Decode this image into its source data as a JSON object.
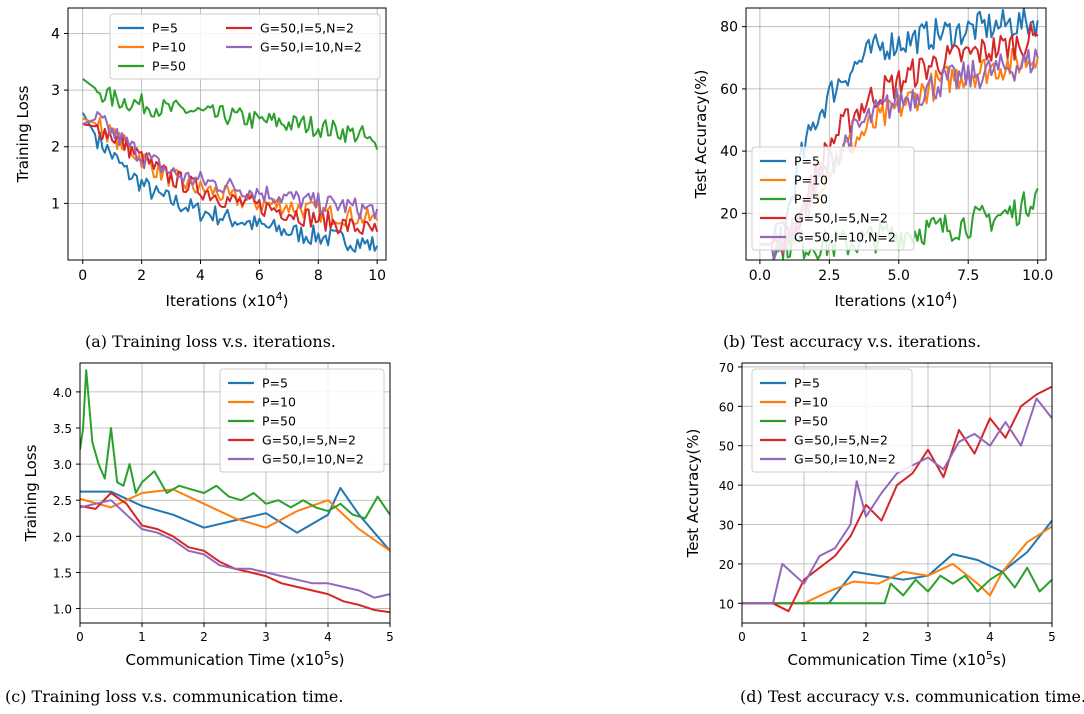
{
  "colors": {
    "P=5": "#1f77b4",
    "P=10": "#ff7f0e",
    "P=50": "#2ca02c",
    "G=50,I=5,N=2": "#d62728",
    "G=50,I=10,N=2": "#9467bd"
  },
  "captions": [
    "(a) Training loss v.s. iterations.",
    "(b) Test accuracy v.s. iterations.",
    "(c) Training loss v.s. communication time.",
    "(d) Test accuracy v.s. communication time."
  ],
  "chart_data": [
    {
      "type": "line",
      "xlabel": "Iterations (x10^4)",
      "ylabel": "Training Loss",
      "xlim": [
        -0.5,
        10.3
      ],
      "ylim": [
        0.0,
        4.45
      ],
      "xticks": [
        0,
        2,
        4,
        6,
        8,
        10
      ],
      "xtick_labels": [
        "0",
        "2",
        "4",
        "6",
        "8",
        "10"
      ],
      "yticks": [
        1,
        2,
        3,
        4
      ],
      "ytick_labels": [
        "1",
        "2",
        "3",
        "4"
      ],
      "grid": true,
      "legend": "top",
      "legend_columns": 2,
      "series": [
        {
          "name": "P=5",
          "x": [
            0,
            0.5,
            1,
            1.5,
            2,
            2.5,
            3,
            3.5,
            4,
            4.5,
            5,
            5.5,
            6,
            6.5,
            7,
            7.5,
            8,
            8.5,
            9,
            9.5,
            10
          ],
          "y": [
            2.6,
            2.15,
            1.85,
            1.55,
            1.35,
            1.15,
            1.05,
            0.95,
            0.85,
            0.8,
            0.72,
            0.68,
            0.6,
            0.55,
            0.5,
            0.45,
            0.42,
            0.38,
            0.35,
            0.3,
            0.25
          ]
        },
        {
          "name": "P=10",
          "x": [
            0,
            0.5,
            1,
            1.5,
            2,
            2.5,
            3,
            3.5,
            4,
            4.5,
            5,
            5.5,
            6,
            6.5,
            7,
            7.5,
            8,
            8.5,
            9,
            9.5,
            10
          ],
          "y": [
            2.5,
            2.4,
            2.2,
            2.0,
            1.8,
            1.6,
            1.45,
            1.35,
            1.25,
            1.2,
            1.1,
            1.05,
            1.0,
            0.98,
            0.95,
            0.9,
            0.85,
            0.8,
            0.78,
            0.75,
            0.7
          ]
        },
        {
          "name": "P=50",
          "x": [
            0,
            0.5,
            1,
            1.5,
            2,
            2.5,
            3,
            3.5,
            4,
            4.5,
            5,
            5.5,
            6,
            6.5,
            7,
            7.5,
            8,
            8.5,
            9,
            9.5,
            10
          ],
          "y": [
            3.2,
            3.0,
            2.85,
            2.8,
            2.75,
            2.7,
            2.65,
            2.65,
            2.6,
            2.55,
            2.55,
            2.5,
            2.45,
            2.45,
            2.4,
            2.4,
            2.35,
            2.3,
            2.25,
            2.2,
            1.95
          ]
        },
        {
          "name": "G=50,I=5,N=2",
          "x": [
            0,
            0.5,
            1,
            1.5,
            2,
            2.5,
            3,
            3.5,
            4,
            4.5,
            5,
            5.5,
            6,
            6.5,
            7,
            7.5,
            8,
            8.5,
            9,
            9.5,
            10
          ],
          "y": [
            2.4,
            2.35,
            2.2,
            2.0,
            1.8,
            1.6,
            1.45,
            1.35,
            1.25,
            1.15,
            1.05,
            1.0,
            0.95,
            0.9,
            0.85,
            0.78,
            0.72,
            0.66,
            0.6,
            0.55,
            0.5
          ]
        },
        {
          "name": "G=50,I=10,N=2",
          "x": [
            0,
            0.5,
            1,
            1.5,
            2,
            2.5,
            3,
            3.5,
            4,
            4.5,
            5,
            5.5,
            6,
            6.5,
            7,
            7.5,
            8,
            8.5,
            9,
            9.5,
            10
          ],
          "y": [
            2.4,
            2.5,
            2.25,
            2.05,
            1.85,
            1.7,
            1.55,
            1.45,
            1.4,
            1.35,
            1.3,
            1.25,
            1.2,
            1.15,
            1.1,
            1.05,
            1.0,
            0.98,
            0.95,
            0.9,
            0.9
          ]
        }
      ]
    },
    {
      "type": "line",
      "xlabel": "Iterations (x10^4)",
      "ylabel": "Test Accuracy(%)",
      "xlim": [
        -0.5,
        10.3
      ],
      "ylim": [
        5,
        86
      ],
      "xticks": [
        0,
        2.5,
        5,
        7.5,
        10
      ],
      "xtick_labels": [
        "0.0",
        "2.5",
        "5.0",
        "7.5",
        "10.0"
      ],
      "yticks": [
        20,
        40,
        60,
        80
      ],
      "ytick_labels": [
        "20",
        "40",
        "60",
        "80"
      ],
      "grid": true,
      "legend": "bottom-left",
      "legend_columns": 1,
      "series": [
        {
          "name": "P=5",
          "x": [
            0,
            0.5,
            1,
            1.5,
            2,
            2.5,
            3,
            3.5,
            4,
            4.5,
            5,
            5.5,
            6,
            6.5,
            7,
            7.5,
            8,
            8.5,
            9,
            9.5,
            10
          ],
          "y": [
            10,
            10,
            20,
            38,
            50,
            58,
            64,
            68,
            72,
            74,
            75,
            76,
            77,
            78,
            78,
            79,
            80,
            80,
            81,
            81,
            82
          ]
        },
        {
          "name": "P=10",
          "x": [
            0,
            0.5,
            1,
            1.5,
            2,
            2.5,
            3,
            3.5,
            4,
            4.5,
            5,
            5.5,
            6,
            6.5,
            7,
            7.5,
            8,
            8.5,
            9,
            9.5,
            10
          ],
          "y": [
            10,
            10,
            12,
            18,
            28,
            35,
            40,
            44,
            48,
            51,
            54,
            57,
            60,
            62,
            64,
            65,
            66,
            67,
            68,
            69,
            70
          ]
        },
        {
          "name": "P=50",
          "x": [
            0,
            0.5,
            1,
            1.5,
            2,
            2.5,
            3,
            3.5,
            4,
            4.5,
            5,
            5.5,
            6,
            6.5,
            7,
            7.5,
            8,
            8.5,
            9,
            9.5,
            10
          ],
          "y": [
            10,
            10,
            10,
            10,
            10,
            10,
            10,
            11,
            12,
            13,
            13,
            14,
            15,
            15,
            16,
            17,
            18,
            19,
            20,
            22,
            28
          ]
        },
        {
          "name": "G=50,I=5,N=2",
          "x": [
            0,
            0.5,
            1,
            1.5,
            2,
            2.5,
            3,
            3.5,
            4,
            4.5,
            5,
            5.5,
            6,
            6.5,
            7,
            7.5,
            8,
            8.5,
            9,
            9.5,
            10
          ],
          "y": [
            10,
            10,
            12,
            20,
            32,
            42,
            48,
            53,
            57,
            60,
            62,
            65,
            67,
            69,
            70,
            71,
            72,
            73,
            74,
            75,
            77
          ]
        },
        {
          "name": "G=50,I=10,N=2",
          "x": [
            0,
            0.5,
            1,
            1.5,
            2,
            2.5,
            3,
            3.5,
            4,
            4.5,
            5,
            5.5,
            6,
            6.5,
            7,
            7.5,
            8,
            8.5,
            9,
            9.5,
            10
          ],
          "y": [
            10,
            10,
            12,
            18,
            28,
            36,
            42,
            47,
            51,
            54,
            56,
            58,
            60,
            62,
            63,
            64,
            65,
            66,
            67,
            68,
            70
          ]
        }
      ]
    },
    {
      "type": "line",
      "xlabel": "Communication Time (x10^5s)",
      "ylabel": "Training Loss",
      "xlim": [
        0,
        5
      ],
      "ylim": [
        0.8,
        4.4
      ],
      "xticks": [
        0,
        1,
        2,
        3,
        4,
        5
      ],
      "xtick_labels": [
        "0",
        "1",
        "2",
        "3",
        "4",
        "5"
      ],
      "yticks": [
        1.0,
        1.5,
        2.0,
        2.5,
        3.0,
        3.5,
        4.0
      ],
      "ytick_labels": [
        "1.0",
        "1.5",
        "2.0",
        "2.5",
        "3.0",
        "3.5",
        "4.0"
      ],
      "grid": true,
      "legend": "top-right",
      "legend_columns": 1,
      "series": [
        {
          "name": "P=5",
          "x": [
            0,
            0.5,
            1,
            1.5,
            2,
            2.5,
            3,
            3.5,
            4,
            4.2,
            4.5,
            5
          ],
          "y": [
            2.62,
            2.62,
            2.42,
            2.3,
            2.12,
            2.22,
            2.32,
            2.05,
            2.3,
            2.67,
            2.3,
            1.8
          ]
        },
        {
          "name": "P=10",
          "x": [
            0,
            0.5,
            1,
            1.5,
            2,
            2.5,
            3,
            3.5,
            4,
            4.5,
            5
          ],
          "y": [
            2.52,
            2.4,
            2.6,
            2.65,
            2.45,
            2.25,
            2.12,
            2.35,
            2.5,
            2.1,
            1.8
          ]
        },
        {
          "name": "P=50",
          "x": [
            0,
            0.05,
            0.1,
            0.2,
            0.3,
            0.4,
            0.5,
            0.6,
            0.7,
            0.8,
            0.9,
            1.0,
            1.2,
            1.4,
            1.6,
            1.8,
            2.0,
            2.2,
            2.4,
            2.6,
            2.8,
            3.0,
            3.2,
            3.4,
            3.6,
            3.8,
            4.0,
            4.2,
            4.4,
            4.6,
            4.8,
            5.0
          ],
          "y": [
            3.2,
            3.5,
            4.3,
            3.3,
            3.0,
            2.8,
            3.5,
            2.75,
            2.7,
            3.0,
            2.6,
            2.75,
            2.9,
            2.6,
            2.7,
            2.65,
            2.6,
            2.7,
            2.55,
            2.5,
            2.6,
            2.45,
            2.5,
            2.4,
            2.5,
            2.4,
            2.35,
            2.45,
            2.3,
            2.25,
            2.55,
            2.3
          ]
        },
        {
          "name": "G=50,I=5,N=2",
          "x": [
            0,
            0.25,
            0.5,
            0.75,
            1,
            1.25,
            1.5,
            1.75,
            2,
            2.25,
            2.5,
            2.75,
            3,
            3.25,
            3.5,
            3.75,
            4,
            4.25,
            4.5,
            4.75,
            5
          ],
          "y": [
            2.42,
            2.38,
            2.6,
            2.45,
            2.15,
            2.1,
            2.0,
            1.85,
            1.8,
            1.65,
            1.55,
            1.5,
            1.45,
            1.35,
            1.3,
            1.25,
            1.2,
            1.1,
            1.05,
            0.98,
            0.95
          ]
        },
        {
          "name": "G=50,I=10,N=2",
          "x": [
            0,
            0.25,
            0.5,
            0.75,
            1,
            1.25,
            1.5,
            1.75,
            2,
            2.25,
            2.5,
            2.75,
            3,
            3.25,
            3.5,
            3.75,
            4,
            4.25,
            4.5,
            4.75,
            5
          ],
          "y": [
            2.4,
            2.45,
            2.5,
            2.3,
            2.1,
            2.05,
            1.95,
            1.8,
            1.75,
            1.6,
            1.55,
            1.55,
            1.5,
            1.45,
            1.4,
            1.35,
            1.35,
            1.3,
            1.25,
            1.15,
            1.2
          ]
        }
      ]
    },
    {
      "type": "line",
      "xlabel": "Communication Time (x10^5s)",
      "ylabel": "Test Accuracy(%)",
      "xlim": [
        0,
        5
      ],
      "ylim": [
        5,
        71
      ],
      "xticks": [
        0,
        1,
        2,
        3,
        4,
        5
      ],
      "xtick_labels": [
        "0",
        "1",
        "2",
        "3",
        "4",
        "5"
      ],
      "yticks": [
        10,
        20,
        30,
        40,
        50,
        60,
        70
      ],
      "ytick_labels": [
        "10",
        "20",
        "30",
        "40",
        "50",
        "60",
        "70"
      ],
      "grid": true,
      "legend": "top-left",
      "legend_columns": 1,
      "series": [
        {
          "name": "P=5",
          "x": [
            0,
            0.5,
            1,
            1.4,
            1.8,
            2.2,
            2.6,
            3.0,
            3.4,
            3.8,
            4.2,
            4.6,
            5.0
          ],
          "y": [
            10,
            10,
            10,
            10,
            18,
            17,
            16,
            17,
            22.5,
            21,
            18,
            23,
            31
          ]
        },
        {
          "name": "P=10",
          "x": [
            0,
            0.5,
            1,
            1.4,
            1.8,
            2.2,
            2.6,
            3.0,
            3.4,
            3.8,
            4.0,
            4.2,
            4.6,
            5.0
          ],
          "y": [
            10,
            10,
            10,
            13,
            15.5,
            15,
            18,
            17,
            20,
            15,
            12,
            18,
            25.5,
            29.5
          ]
        },
        {
          "name": "P=50",
          "x": [
            0,
            0.5,
            1,
            1.5,
            2,
            2.3,
            2.4,
            2.6,
            2.8,
            3.0,
            3.2,
            3.4,
            3.6,
            3.8,
            4.0,
            4.2,
            4.4,
            4.6,
            4.8,
            5.0
          ],
          "y": [
            10,
            10,
            10,
            10,
            10,
            10,
            15,
            12,
            16,
            13,
            17,
            15,
            17,
            13,
            16,
            18,
            14,
            19,
            13,
            16
          ]
        },
        {
          "name": "G=50,I=5,N=2",
          "x": [
            0,
            0.5,
            0.75,
            1,
            1.25,
            1.5,
            1.75,
            2,
            2.25,
            2.5,
            2.75,
            3,
            3.25,
            3.5,
            3.75,
            4,
            4.25,
            4.5,
            4.75,
            5
          ],
          "y": [
            10,
            10,
            8,
            16,
            19,
            22,
            27,
            35,
            31,
            40,
            43,
            49,
            42,
            54,
            48,
            57,
            52,
            60,
            63,
            65
          ]
        },
        {
          "name": "G=50,I=10,N=2",
          "x": [
            0,
            0.5,
            0.65,
            1,
            1.25,
            1.5,
            1.75,
            1.85,
            2,
            2.25,
            2.5,
            2.75,
            3,
            3.25,
            3.5,
            3.75,
            4,
            4.25,
            4.5,
            4.75,
            5
          ],
          "y": [
            10,
            10,
            20,
            15,
            22,
            24,
            30,
            41,
            32,
            38,
            43,
            45,
            47,
            44,
            51,
            53,
            50,
            56,
            50,
            62,
            57
          ]
        }
      ]
    }
  ]
}
